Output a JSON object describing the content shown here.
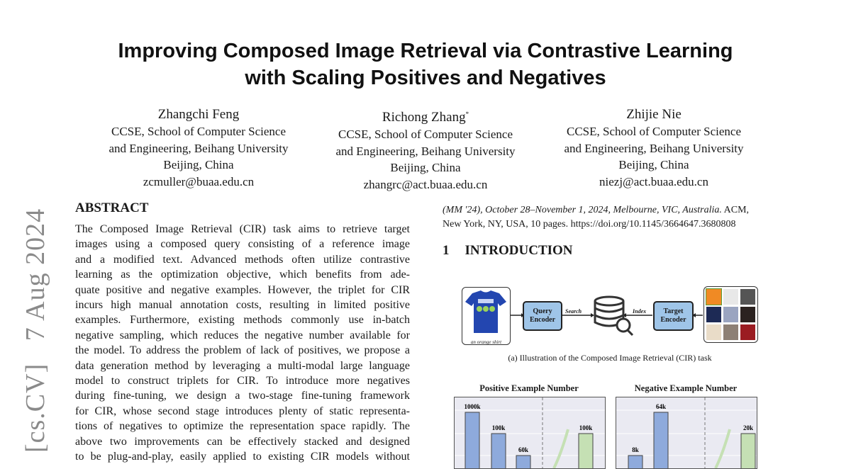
{
  "paper": {
    "title_lines": [
      "Improving Composed Image Retrieval via Contrastive Learning",
      "with Scaling Positives and Negatives"
    ],
    "authors": [
      {
        "name": "Zhangchi Feng",
        "mark": "",
        "affil": [
          "CCSE, School of Computer Science",
          "and Engineering, Beihang University",
          "Beijing, China"
        ],
        "email": "zcmuller@buaa.edu.cn"
      },
      {
        "name": "Richong Zhang",
        "mark": "*",
        "affil": [
          "CCSE, School of Computer Science",
          "and Engineering, Beihang University",
          "Beijing, China"
        ],
        "email": "zhangrc@act.buaa.edu.cn"
      },
      {
        "name": "Zhijie Nie",
        "mark": "",
        "affil": [
          "CCSE, School of Computer Science",
          "and Engineering, Beihang University",
          "Beijing, China"
        ],
        "email": "niezj@act.buaa.edu.cn"
      }
    ],
    "arxiv_stamp": "[cs.CV]   7 Aug 2024",
    "abstract": {
      "heading": "ABSTRACT",
      "lines": [
        "The Composed Image Retrieval (CIR) task aims to retrieve target",
        "images using a composed query consisting of a reference image",
        "and a modified text. Advanced methods often utilize contrastive",
        "learning as the optimization objective, which benefits from ade-",
        "quate positive and negative examples. However, the triplet for CIR",
        "incurs high manual annotation costs, resulting in limited positive",
        "examples. Furthermore, existing methods commonly use in-batch",
        "negative sampling, which reduces the negative number available for",
        "the model. To address the problem of lack of positives, we propose a",
        "data generation method by leveraging a multi-modal large language",
        "model to construct triplets for CIR. To introduce more negatives",
        "during fine-tuning, we design a two-stage fine-tuning framework",
        "for CIR, whose second stage introduces plenty of static representa-",
        "tions of negatives to optimize the representation space rapidly. The",
        "above two improvements can be effectively stacked and designed",
        "to be plug-and-play, easily applied to existing CIR models without"
      ]
    },
    "reference": {
      "line1_italic": "(MM '24), October 28–November 1, 2024, Melbourne, VIC, Australia.",
      "line1_rest": " ACM,",
      "line2": "New York, NY, USA, 10 pages. https://doi.org/10.1145/3664647.3680808"
    },
    "intro": {
      "number": "1",
      "heading": "INTRODUCTION"
    },
    "figure": {
      "query_caption": "an orange shirt",
      "query_encoder": "Query Encoder",
      "target_encoder": "Target Encoder",
      "search_label": "Search",
      "index_label": "Index",
      "caption": "(a) Illustration of the Composed Image Retrieval (CIR) task"
    }
  },
  "chart_data": [
    {
      "type": "bar",
      "title": "Positive Example Number",
      "categories": [
        "",
        "",
        "",
        ""
      ],
      "values_label": [
        "1000k",
        "100k",
        "60k",
        "100k"
      ],
      "values": [
        1000,
        100,
        60,
        100
      ],
      "unit": "k",
      "colors": [
        "#8eaadc",
        "#8eaadc",
        "#8eaadc",
        "#c5e0b4"
      ],
      "grid": true
    },
    {
      "type": "bar",
      "title": "Negative Example Number",
      "categories": [
        "",
        "",
        ""
      ],
      "values_label": [
        "8k",
        "64k",
        "20k"
      ],
      "values": [
        8,
        64,
        20
      ],
      "unit": "k",
      "colors": [
        "#8eaadc",
        "#8eaadc",
        "#c5e0b4"
      ],
      "grid": true
    }
  ]
}
